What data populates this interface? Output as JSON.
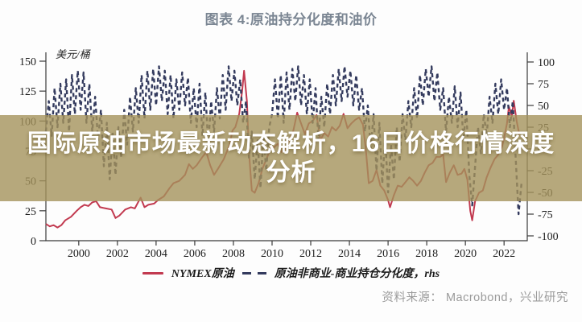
{
  "figure_title": "图表 4:原油持分化度和油价",
  "headline": {
    "line1": "国际原油市场最新动态解析，16日价格行情深度",
    "line2": "分析",
    "overlay_rgba": "rgba(164,146,91,0.8)",
    "text_color": "#ffffff"
  },
  "source_note": "资料来源： Macrobond，兴业研究",
  "chart_data": {
    "type": "line",
    "title": "图表 4:原油持分化度和油价",
    "grid": false,
    "legend_position": "bottom",
    "x_axis": {
      "ticks": [
        2000,
        2002,
        2004,
        2006,
        2008,
        2010,
        2012,
        2014,
        2016,
        2018,
        2020,
        2022
      ],
      "range": [
        1998.3,
        2023.2
      ]
    },
    "left_axis": {
      "label": "美元/桶",
      "ticks": [
        150,
        125,
        100,
        75,
        50,
        25,
        0
      ],
      "range": [
        0,
        150
      ]
    },
    "right_axis": {
      "label": "rhs",
      "ticks": [
        100,
        75,
        50,
        25,
        0,
        -25,
        -50,
        -75,
        -100
      ],
      "range": [
        -100,
        100
      ]
    },
    "series": [
      {
        "name": "NYMEX原油",
        "axis": "left",
        "style": "solid",
        "color": "#c23a50",
        "points": [
          [
            1998.3,
            14
          ],
          [
            1998.5,
            12
          ],
          [
            1998.7,
            13
          ],
          [
            1998.9,
            11
          ],
          [
            1999.1,
            13
          ],
          [
            1999.3,
            17
          ],
          [
            1999.6,
            20
          ],
          [
            1999.9,
            25
          ],
          [
            2000.1,
            28
          ],
          [
            2000.3,
            30
          ],
          [
            2000.5,
            29
          ],
          [
            2000.7,
            32
          ],
          [
            2000.9,
            33
          ],
          [
            2001.1,
            28
          ],
          [
            2001.4,
            27
          ],
          [
            2001.7,
            26
          ],
          [
            2001.9,
            19
          ],
          [
            2002.1,
            21
          ],
          [
            2002.4,
            26
          ],
          [
            2002.7,
            28
          ],
          [
            2002.9,
            27
          ],
          [
            2003.1,
            33
          ],
          [
            2003.2,
            36
          ],
          [
            2003.4,
            28
          ],
          [
            2003.6,
            30
          ],
          [
            2003.9,
            31
          ],
          [
            2004.1,
            34
          ],
          [
            2004.4,
            37
          ],
          [
            2004.7,
            44
          ],
          [
            2004.9,
            48
          ],
          [
            2005.2,
            50
          ],
          [
            2005.5,
            55
          ],
          [
            2005.7,
            64
          ],
          [
            2005.9,
            60
          ],
          [
            2006.1,
            63
          ],
          [
            2006.4,
            70
          ],
          [
            2006.6,
            74
          ],
          [
            2006.8,
            63
          ],
          [
            2007.0,
            55
          ],
          [
            2007.2,
            60
          ],
          [
            2007.5,
            68
          ],
          [
            2007.8,
            80
          ],
          [
            2007.95,
            92
          ],
          [
            2008.1,
            95
          ],
          [
            2008.3,
            106
          ],
          [
            2008.45,
            125
          ],
          [
            2008.55,
            142
          ],
          [
            2008.7,
            116
          ],
          [
            2008.8,
            75
          ],
          [
            2008.95,
            42
          ],
          [
            2009.1,
            40
          ],
          [
            2009.3,
            48
          ],
          [
            2009.5,
            60
          ],
          [
            2009.7,
            68
          ],
          [
            2009.9,
            76
          ],
          [
            2010.1,
            78
          ],
          [
            2010.3,
            81
          ],
          [
            2010.5,
            74
          ],
          [
            2010.7,
            77
          ],
          [
            2010.9,
            84
          ],
          [
            2011.1,
            92
          ],
          [
            2011.3,
            107
          ],
          [
            2011.5,
            98
          ],
          [
            2011.7,
            89
          ],
          [
            2011.9,
            98
          ],
          [
            2012.1,
            100
          ],
          [
            2012.3,
            105
          ],
          [
            2012.5,
            84
          ],
          [
            2012.7,
            90
          ],
          [
            2012.9,
            87
          ],
          [
            2013.1,
            95
          ],
          [
            2013.3,
            92
          ],
          [
            2013.5,
            96
          ],
          [
            2013.7,
            106
          ],
          [
            2013.9,
            94
          ],
          [
            2014.1,
            98
          ],
          [
            2014.3,
            101
          ],
          [
            2014.5,
            103
          ],
          [
            2014.7,
            97
          ],
          [
            2014.85,
            76
          ],
          [
            2015.0,
            48
          ],
          [
            2015.2,
            50
          ],
          [
            2015.4,
            59
          ],
          [
            2015.6,
            46
          ],
          [
            2015.8,
            42
          ],
          [
            2016.0,
            34
          ],
          [
            2016.1,
            28
          ],
          [
            2016.3,
            38
          ],
          [
            2016.5,
            46
          ],
          [
            2016.7,
            45
          ],
          [
            2016.9,
            49
          ],
          [
            2017.1,
            53
          ],
          [
            2017.3,
            50
          ],
          [
            2017.5,
            46
          ],
          [
            2017.7,
            50
          ],
          [
            2017.9,
            57
          ],
          [
            2018.1,
            63
          ],
          [
            2018.3,
            65
          ],
          [
            2018.5,
            70
          ],
          [
            2018.7,
            70
          ],
          [
            2018.85,
            72
          ],
          [
            2019.0,
            49
          ],
          [
            2019.2,
            57
          ],
          [
            2019.4,
            63
          ],
          [
            2019.6,
            55
          ],
          [
            2019.8,
            56
          ],
          [
            2019.95,
            60
          ],
          [
            2020.1,
            51
          ],
          [
            2020.25,
            25
          ],
          [
            2020.35,
            17
          ],
          [
            2020.5,
            33
          ],
          [
            2020.7,
            40
          ],
          [
            2020.9,
            42
          ],
          [
            2021.1,
            53
          ],
          [
            2021.3,
            61
          ],
          [
            2021.5,
            68
          ],
          [
            2021.7,
            72
          ],
          [
            2021.9,
            79
          ],
          [
            2022.0,
            86
          ],
          [
            2022.15,
            98
          ],
          [
            2022.25,
            112
          ],
          [
            2022.4,
            104
          ],
          [
            2022.5,
            117
          ],
          [
            2022.65,
            100
          ],
          [
            2022.8,
            88
          ]
        ]
      },
      {
        "name": "原油非商业-商业持仓分化度，rhs",
        "axis": "right",
        "style": "dashed",
        "color": "#343b5e",
        "points": [
          [
            1998.3,
            20
          ],
          [
            1998.45,
            55
          ],
          [
            1998.6,
            15
          ],
          [
            1998.75,
            70
          ],
          [
            1998.9,
            25
          ],
          [
            1999.05,
            75
          ],
          [
            1999.2,
            30
          ],
          [
            1999.35,
            80
          ],
          [
            1999.5,
            20
          ],
          [
            1999.65,
            85
          ],
          [
            1999.8,
            40
          ],
          [
            1999.95,
            90
          ],
          [
            2000.1,
            45
          ],
          [
            2000.25,
            88
          ],
          [
            2000.4,
            30
          ],
          [
            2000.55,
            75
          ],
          [
            2000.7,
            20
          ],
          [
            2000.85,
            60
          ],
          [
            2001.0,
            10
          ],
          [
            2001.15,
            45
          ],
          [
            2001.3,
            -20
          ],
          [
            2001.45,
            30
          ],
          [
            2001.6,
            -35
          ],
          [
            2001.75,
            20
          ],
          [
            2001.9,
            -30
          ],
          [
            2002.05,
            25
          ],
          [
            2002.2,
            -10
          ],
          [
            2002.35,
            45
          ],
          [
            2002.5,
            5
          ],
          [
            2002.65,
            60
          ],
          [
            2002.8,
            20
          ],
          [
            2002.95,
            70
          ],
          [
            2003.1,
            30
          ],
          [
            2003.25,
            85
          ],
          [
            2003.4,
            35
          ],
          [
            2003.55,
            90
          ],
          [
            2003.7,
            45
          ],
          [
            2003.85,
            92
          ],
          [
            2004.0,
            50
          ],
          [
            2004.15,
            95
          ],
          [
            2004.3,
            55
          ],
          [
            2004.45,
            90
          ],
          [
            2004.6,
            40
          ],
          [
            2004.75,
            85
          ],
          [
            2004.9,
            35
          ],
          [
            2005.05,
            80
          ],
          [
            2005.2,
            45
          ],
          [
            2005.35,
            88
          ],
          [
            2005.5,
            50
          ],
          [
            2005.65,
            82
          ],
          [
            2005.8,
            30
          ],
          [
            2005.95,
            70
          ],
          [
            2006.1,
            25
          ],
          [
            2006.25,
            75
          ],
          [
            2006.4,
            15
          ],
          [
            2006.55,
            65
          ],
          [
            2006.7,
            5
          ],
          [
            2006.85,
            55
          ],
          [
            2007.0,
            20
          ],
          [
            2007.15,
            70
          ],
          [
            2007.3,
            35
          ],
          [
            2007.45,
            85
          ],
          [
            2007.6,
            45
          ],
          [
            2007.75,
            95
          ],
          [
            2007.9,
            55
          ],
          [
            2008.05,
            90
          ],
          [
            2008.2,
            50
          ],
          [
            2008.35,
            80
          ],
          [
            2008.5,
            30
          ],
          [
            2008.65,
            55
          ],
          [
            2008.8,
            -10
          ],
          [
            2008.95,
            20
          ],
          [
            2009.1,
            -35
          ],
          [
            2009.25,
            10
          ],
          [
            2009.4,
            -45
          ],
          [
            2009.55,
            15
          ],
          [
            2009.7,
            -25
          ],
          [
            2009.85,
            25
          ],
          [
            2010.0,
            40
          ],
          [
            2010.15,
            80
          ],
          [
            2010.3,
            35
          ],
          [
            2010.45,
            85
          ],
          [
            2010.6,
            30
          ],
          [
            2010.75,
            88
          ],
          [
            2010.9,
            45
          ],
          [
            2011.05,
            92
          ],
          [
            2011.2,
            55
          ],
          [
            2011.35,
            95
          ],
          [
            2011.5,
            50
          ],
          [
            2011.65,
            85
          ],
          [
            2011.8,
            40
          ],
          [
            2011.95,
            80
          ],
          [
            2012.1,
            30
          ],
          [
            2012.25,
            70
          ],
          [
            2012.4,
            10
          ],
          [
            2012.55,
            60
          ],
          [
            2012.7,
            25
          ],
          [
            2012.85,
            75
          ],
          [
            2013.0,
            40
          ],
          [
            2013.15,
            85
          ],
          [
            2013.3,
            50
          ],
          [
            2013.45,
            92
          ],
          [
            2013.6,
            55
          ],
          [
            2013.75,
            95
          ],
          [
            2013.9,
            60
          ],
          [
            2014.05,
            90
          ],
          [
            2014.2,
            50
          ],
          [
            2014.35,
            85
          ],
          [
            2014.5,
            45
          ],
          [
            2014.65,
            70
          ],
          [
            2014.8,
            20
          ],
          [
            2014.95,
            50
          ],
          [
            2015.1,
            0
          ],
          [
            2015.25,
            40
          ],
          [
            2015.4,
            -25
          ],
          [
            2015.55,
            30
          ],
          [
            2015.7,
            -40
          ],
          [
            2015.85,
            15
          ],
          [
            2016.0,
            -50
          ],
          [
            2016.15,
            5
          ],
          [
            2016.3,
            -35
          ],
          [
            2016.45,
            25
          ],
          [
            2016.6,
            -15
          ],
          [
            2016.75,
            40
          ],
          [
            2016.9,
            10
          ],
          [
            2017.05,
            55
          ],
          [
            2017.2,
            25
          ],
          [
            2017.35,
            70
          ],
          [
            2017.5,
            35
          ],
          [
            2017.65,
            85
          ],
          [
            2017.8,
            50
          ],
          [
            2017.95,
            92
          ],
          [
            2018.1,
            60
          ],
          [
            2018.25,
            95
          ],
          [
            2018.4,
            55
          ],
          [
            2018.55,
            88
          ],
          [
            2018.7,
            45
          ],
          [
            2018.85,
            70
          ],
          [
            2019.0,
            20
          ],
          [
            2019.15,
            60
          ],
          [
            2019.3,
            30
          ],
          [
            2019.45,
            72
          ],
          [
            2019.6,
            25
          ],
          [
            2019.75,
            65
          ],
          [
            2019.9,
            10
          ],
          [
            2020.05,
            45
          ],
          [
            2020.2,
            -30
          ],
          [
            2020.35,
            -65
          ],
          [
            2020.5,
            -20
          ],
          [
            2020.65,
            25
          ],
          [
            2020.8,
            -5
          ],
          [
            2020.95,
            40
          ],
          [
            2021.1,
            15
          ],
          [
            2021.25,
            60
          ],
          [
            2021.4,
            30
          ],
          [
            2021.55,
            75
          ],
          [
            2021.7,
            40
          ],
          [
            2021.85,
            80
          ],
          [
            2022.0,
            45
          ],
          [
            2022.15,
            70
          ],
          [
            2022.3,
            25
          ],
          [
            2022.45,
            55
          ],
          [
            2022.6,
            -10
          ],
          [
            2022.75,
            -75
          ],
          [
            2022.9,
            -40
          ]
        ]
      }
    ],
    "source": "资料来源： Macrobond，兴业研究"
  }
}
